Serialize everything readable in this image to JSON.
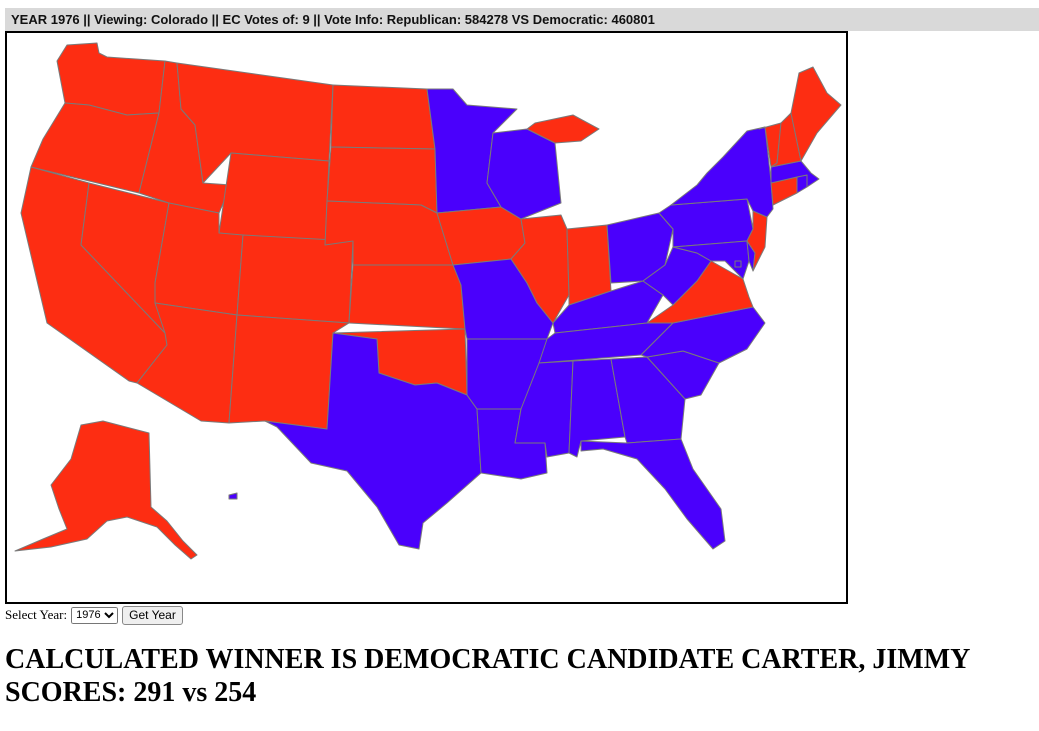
{
  "info_bar": {
    "text": "YEAR 1976 || Viewing: Colorado || EC Votes of: 9 || Vote Info: Republican: 584278 VS Democratic: 460801"
  },
  "colors": {
    "republican": "#fd2d12",
    "democratic": "#4a00fc",
    "border": "#7a7a7a"
  },
  "map": {
    "states": [
      {
        "code": "WA",
        "party": "republican"
      },
      {
        "code": "OR",
        "party": "republican"
      },
      {
        "code": "CA",
        "party": "republican"
      },
      {
        "code": "NV",
        "party": "republican"
      },
      {
        "code": "ID",
        "party": "republican"
      },
      {
        "code": "MT",
        "party": "republican"
      },
      {
        "code": "WY",
        "party": "republican"
      },
      {
        "code": "UT",
        "party": "republican"
      },
      {
        "code": "AZ",
        "party": "republican"
      },
      {
        "code": "CO",
        "party": "republican"
      },
      {
        "code": "NM",
        "party": "republican"
      },
      {
        "code": "ND",
        "party": "republican"
      },
      {
        "code": "SD",
        "party": "republican"
      },
      {
        "code": "NE",
        "party": "republican"
      },
      {
        "code": "KS",
        "party": "republican"
      },
      {
        "code": "OK",
        "party": "republican"
      },
      {
        "code": "TX",
        "party": "democratic"
      },
      {
        "code": "MN",
        "party": "democratic"
      },
      {
        "code": "IA",
        "party": "republican"
      },
      {
        "code": "MO",
        "party": "democratic"
      },
      {
        "code": "AR",
        "party": "democratic"
      },
      {
        "code": "LA",
        "party": "democratic"
      },
      {
        "code": "WI",
        "party": "democratic"
      },
      {
        "code": "IL",
        "party": "republican"
      },
      {
        "code": "MI",
        "party": "republican"
      },
      {
        "code": "IN",
        "party": "republican"
      },
      {
        "code": "OH",
        "party": "democratic"
      },
      {
        "code": "KY",
        "party": "democratic"
      },
      {
        "code": "TN",
        "party": "democratic"
      },
      {
        "code": "MS",
        "party": "democratic"
      },
      {
        "code": "AL",
        "party": "democratic"
      },
      {
        "code": "GA",
        "party": "democratic"
      },
      {
        "code": "FL",
        "party": "democratic"
      },
      {
        "code": "SC",
        "party": "democratic"
      },
      {
        "code": "NC",
        "party": "democratic"
      },
      {
        "code": "VA",
        "party": "republican"
      },
      {
        "code": "WV",
        "party": "democratic"
      },
      {
        "code": "MD",
        "party": "democratic"
      },
      {
        "code": "DE",
        "party": "democratic"
      },
      {
        "code": "DC",
        "party": "democratic"
      },
      {
        "code": "PA",
        "party": "democratic"
      },
      {
        "code": "NJ",
        "party": "republican"
      },
      {
        "code": "NY",
        "party": "democratic"
      },
      {
        "code": "CT",
        "party": "republican"
      },
      {
        "code": "RI",
        "party": "democratic"
      },
      {
        "code": "MA",
        "party": "democratic"
      },
      {
        "code": "VT",
        "party": "republican"
      },
      {
        "code": "NH",
        "party": "republican"
      },
      {
        "code": "ME",
        "party": "republican"
      },
      {
        "code": "AK",
        "party": "republican"
      },
      {
        "code": "HI",
        "party": "democratic"
      }
    ]
  },
  "controls": {
    "select_label": "Select Year:",
    "year_options": [
      "1976"
    ],
    "selected_year": "1976",
    "get_year_label": "Get Year"
  },
  "result": {
    "winner_line": "CALCULATED WINNER IS DEMOCRATIC CANDIDATE CARTER, JIMMY",
    "scores_line": "SCORES: 291 vs 254"
  }
}
